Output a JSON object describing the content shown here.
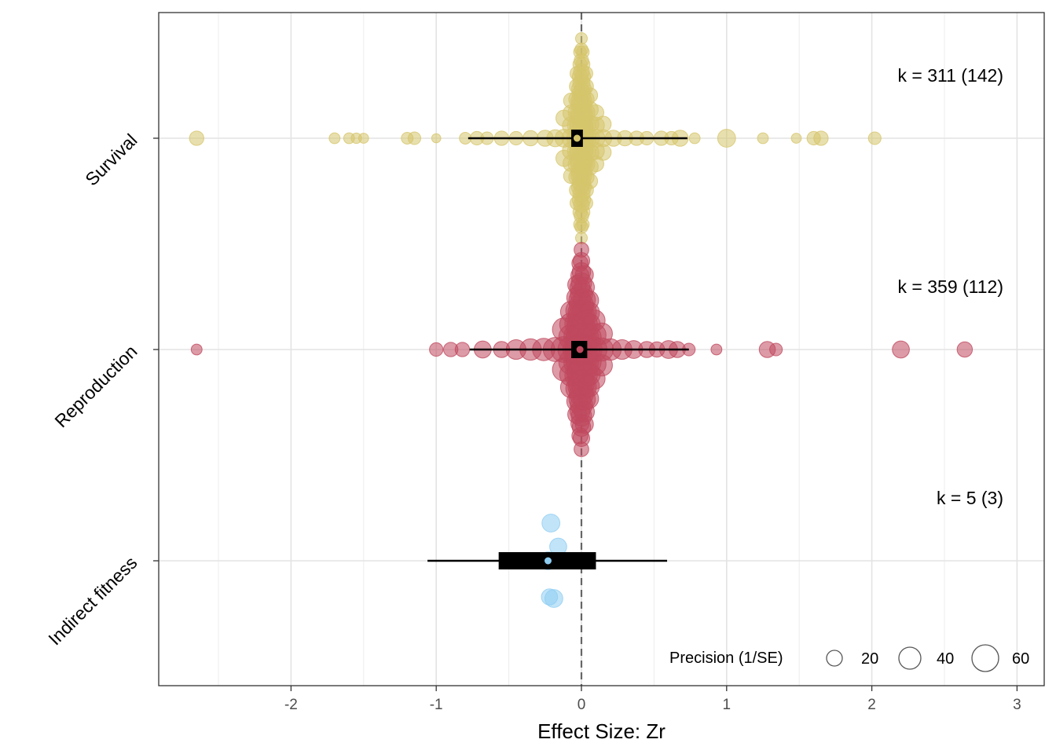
{
  "chart_data": {
    "type": "scatter",
    "subtype": "orchard-plot",
    "xlabel": "Effect Size: Zr",
    "xlim": [
      -2.9,
      3.1
    ],
    "xticks": [
      -2,
      -1,
      0,
      1,
      2,
      3
    ],
    "xtick_labels": [
      "-2",
      "-1",
      "0",
      "1",
      "2",
      "3"
    ],
    "reference_line_x": 0,
    "grid": true,
    "legend": {
      "title": "Precision (1/SE)",
      "placement": "bottom-right",
      "values": [
        20,
        40,
        60
      ],
      "labels": [
        "20",
        "40",
        "60"
      ]
    },
    "groups": [
      {
        "name": "Survival",
        "color": "#d6c56b",
        "k_label": "k = 311 (142)",
        "estimate": -0.03,
        "ci": [
          -0.07,
          0.01
        ],
        "pi": [
          -0.78,
          0.73
        ],
        "points": [
          {
            "x": -2.65,
            "p": 22
          },
          {
            "x": -1.7,
            "p": 14
          },
          {
            "x": -1.6,
            "p": 14
          },
          {
            "x": -1.55,
            "p": 13
          },
          {
            "x": -1.5,
            "p": 12
          },
          {
            "x": -1.2,
            "p": 16
          },
          {
            "x": -1.15,
            "p": 18
          },
          {
            "x": -1.0,
            "p": 10
          },
          {
            "x": -0.8,
            "p": 16
          },
          {
            "x": -0.72,
            "p": 20
          },
          {
            "x": -0.65,
            "p": 18
          },
          {
            "x": -0.55,
            "p": 22
          },
          {
            "x": -0.45,
            "p": 20
          },
          {
            "x": -0.35,
            "p": 24
          },
          {
            "x": -0.25,
            "p": 26
          },
          {
            "x": -0.18,
            "p": 28
          },
          {
            "x": -0.12,
            "p": 30
          },
          {
            "x": -0.07,
            "p": 32
          },
          {
            "x": -0.03,
            "p": 36
          },
          {
            "x": -0.01,
            "p": 40
          },
          {
            "x": 0.0,
            "p": 44
          },
          {
            "x": 0.01,
            "p": 40
          },
          {
            "x": 0.03,
            "p": 36
          },
          {
            "x": 0.06,
            "p": 32
          },
          {
            "x": 0.1,
            "p": 30
          },
          {
            "x": 0.15,
            "p": 28
          },
          {
            "x": 0.22,
            "p": 26
          },
          {
            "x": 0.3,
            "p": 24
          },
          {
            "x": 0.38,
            "p": 22
          },
          {
            "x": 0.45,
            "p": 20
          },
          {
            "x": 0.55,
            "p": 22
          },
          {
            "x": 0.62,
            "p": 20
          },
          {
            "x": 0.68,
            "p": 26
          },
          {
            "x": 0.78,
            "p": 14
          },
          {
            "x": 1.0,
            "p": 30
          },
          {
            "x": 1.25,
            "p": 14
          },
          {
            "x": 1.48,
            "p": 12
          },
          {
            "x": 1.6,
            "p": 20
          },
          {
            "x": 1.65,
            "p": 22
          },
          {
            "x": 2.02,
            "p": 18
          }
        ]
      },
      {
        "name": "Reproduction",
        "color": "#c0485e",
        "k_label": "k = 359 (112)",
        "estimate": -0.01,
        "ci": [
          -0.07,
          0.04
        ],
        "pi": [
          -0.77,
          0.74
        ],
        "points": [
          {
            "x": -2.65,
            "p": 14
          },
          {
            "x": -1.0,
            "p": 20
          },
          {
            "x": -0.9,
            "p": 22
          },
          {
            "x": -0.82,
            "p": 22
          },
          {
            "x": -0.68,
            "p": 28
          },
          {
            "x": -0.55,
            "p": 26
          },
          {
            "x": -0.45,
            "p": 34
          },
          {
            "x": -0.35,
            "p": 38
          },
          {
            "x": -0.26,
            "p": 40
          },
          {
            "x": -0.18,
            "p": 44
          },
          {
            "x": -0.12,
            "p": 48
          },
          {
            "x": -0.07,
            "p": 50
          },
          {
            "x": -0.03,
            "p": 54
          },
          {
            "x": -0.01,
            "p": 58
          },
          {
            "x": 0.0,
            "p": 62
          },
          {
            "x": 0.02,
            "p": 58
          },
          {
            "x": 0.05,
            "p": 50
          },
          {
            "x": 0.09,
            "p": 46
          },
          {
            "x": 0.14,
            "p": 42
          },
          {
            "x": 0.2,
            "p": 38
          },
          {
            "x": 0.28,
            "p": 34
          },
          {
            "x": 0.36,
            "p": 30
          },
          {
            "x": 0.45,
            "p": 26
          },
          {
            "x": 0.52,
            "p": 24
          },
          {
            "x": 0.6,
            "p": 30
          },
          {
            "x": 0.66,
            "p": 26
          },
          {
            "x": 0.74,
            "p": 18
          },
          {
            "x": 0.93,
            "p": 14
          },
          {
            "x": 1.28,
            "p": 26
          },
          {
            "x": 1.34,
            "p": 18
          },
          {
            "x": 2.2,
            "p": 28
          },
          {
            "x": 2.64,
            "p": 24
          }
        ]
      },
      {
        "name": "Indirect fitness",
        "color": "#8ecdf2",
        "k_label": "k = 5 (3)",
        "estimate": -0.23,
        "ci": [
          -0.57,
          0.1
        ],
        "pi": [
          -1.06,
          0.59
        ],
        "points": [
          {
            "x": -0.21,
            "p": 30
          },
          {
            "x": -0.16,
            "p": 28
          },
          {
            "x": -0.23,
            "p": 30
          },
          {
            "x": -0.19,
            "p": 30
          },
          {
            "x": -0.22,
            "p": 26
          }
        ]
      }
    ]
  }
}
